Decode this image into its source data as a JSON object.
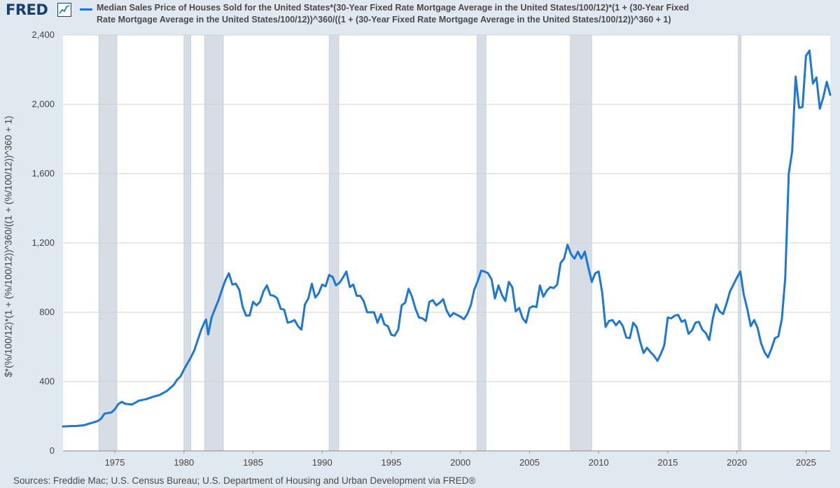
{
  "app": {
    "logo_text": "FRED"
  },
  "chart_data": {
    "type": "line",
    "title": "Median Sales Price of Houses Sold for the United States*(30-Year Fixed Rate Mortgage Average in the United States/100/12)*(1 + (30-Year Fixed Rate Mortgage Average in the United States/100/12))^360/((1 + (30-Year Fixed Rate Mortgage Average in the United States/100/12))^360 + 1)",
    "ylabel": "$*(%/100/12)*(1 + (%/100/12))^360/((1 + (%/100/12))^360 + 1)",
    "xlabel": "",
    "xlim": [
      1971.25,
      2025.0
    ],
    "ylim": [
      0,
      2400
    ],
    "x_ticks": [
      "1975",
      "1980",
      "1985",
      "1990",
      "1995",
      "2000",
      "2005",
      "2010",
      "2015",
      "2020",
      "2025"
    ],
    "y_ticks": [
      "0",
      "400",
      "800",
      "1,200",
      "1,600",
      "2,000",
      "2,400"
    ],
    "grid": "horizontal",
    "line_color": "#1f77d4",
    "recession_color": "#d6dde4",
    "recessions": [
      [
        1973.85,
        1975.15
      ],
      [
        1980.0,
        1980.5
      ],
      [
        1981.5,
        1982.85
      ],
      [
        1990.5,
        1991.2
      ],
      [
        2001.2,
        2001.85
      ],
      [
        2007.95,
        2009.5
      ],
      [
        2020.1,
        2020.3
      ]
    ],
    "series": [
      {
        "values": [
          [
            1971.25,
            141
          ],
          [
            1971.75,
            143
          ],
          [
            1972.25,
            144
          ],
          [
            1972.75,
            148
          ],
          [
            1973.25,
            160
          ],
          [
            1973.75,
            172
          ],
          [
            1974.0,
            185
          ],
          [
            1974.25,
            215
          ],
          [
            1974.75,
            222
          ],
          [
            1975.0,
            240
          ],
          [
            1975.25,
            270
          ],
          [
            1975.5,
            283
          ],
          [
            1975.75,
            272
          ],
          [
            1976.25,
            268
          ],
          [
            1976.75,
            290
          ],
          [
            1977.25,
            298
          ],
          [
            1977.75,
            312
          ],
          [
            1978.25,
            323
          ],
          [
            1978.75,
            345
          ],
          [
            1979.25,
            380
          ],
          [
            1979.5,
            410
          ],
          [
            1979.75,
            430
          ],
          [
            1980.0,
            470
          ],
          [
            1980.25,
            505
          ],
          [
            1980.5,
            540
          ],
          [
            1980.75,
            580
          ],
          [
            1981.0,
            640
          ],
          [
            1981.25,
            700
          ],
          [
            1981.5,
            745
          ],
          [
            1981.6,
            758
          ],
          [
            1981.75,
            672
          ],
          [
            1982.0,
            770
          ],
          [
            1982.25,
            820
          ],
          [
            1982.5,
            870
          ],
          [
            1982.75,
            930
          ],
          [
            1983.0,
            985
          ],
          [
            1983.25,
            1025
          ],
          [
            1983.5,
            960
          ],
          [
            1983.75,
            965
          ],
          [
            1984.0,
            930
          ],
          [
            1984.25,
            830
          ],
          [
            1984.5,
            780
          ],
          [
            1984.75,
            782
          ],
          [
            1985.0,
            860
          ],
          [
            1985.25,
            840
          ],
          [
            1985.5,
            860
          ],
          [
            1985.75,
            920
          ],
          [
            1986.0,
            955
          ],
          [
            1986.25,
            900
          ],
          [
            1986.5,
            895
          ],
          [
            1986.75,
            880
          ],
          [
            1987.0,
            820
          ],
          [
            1987.25,
            815
          ],
          [
            1987.5,
            740
          ],
          [
            1987.75,
            745
          ],
          [
            1988.0,
            755
          ],
          [
            1988.25,
            720
          ],
          [
            1988.5,
            700
          ],
          [
            1988.75,
            845
          ],
          [
            1989.0,
            880
          ],
          [
            1989.25,
            965
          ],
          [
            1989.5,
            885
          ],
          [
            1989.75,
            910
          ],
          [
            1990.0,
            960
          ],
          [
            1990.25,
            950
          ],
          [
            1990.5,
            1015
          ],
          [
            1990.75,
            1005
          ],
          [
            1991.0,
            955
          ],
          [
            1991.25,
            970
          ],
          [
            1991.5,
            1000
          ],
          [
            1991.75,
            1035
          ],
          [
            1992.0,
            945
          ],
          [
            1992.25,
            960
          ],
          [
            1992.5,
            895
          ],
          [
            1992.75,
            895
          ],
          [
            1993.0,
            865
          ],
          [
            1993.25,
            800
          ],
          [
            1993.5,
            800
          ],
          [
            1993.75,
            800
          ],
          [
            1994.0,
            740
          ],
          [
            1994.25,
            790
          ],
          [
            1994.5,
            730
          ],
          [
            1994.75,
            720
          ],
          [
            1995.0,
            670
          ],
          [
            1995.25,
            665
          ],
          [
            1995.5,
            700
          ],
          [
            1995.75,
            840
          ],
          [
            1996.0,
            855
          ],
          [
            1996.25,
            935
          ],
          [
            1996.5,
            890
          ],
          [
            1996.75,
            820
          ],
          [
            1997.0,
            770
          ],
          [
            1997.25,
            765
          ],
          [
            1997.5,
            750
          ],
          [
            1997.75,
            860
          ],
          [
            1998.0,
            870
          ],
          [
            1998.25,
            840
          ],
          [
            1998.5,
            855
          ],
          [
            1998.75,
            875
          ],
          [
            1999.0,
            810
          ],
          [
            1999.25,
            775
          ],
          [
            1999.5,
            795
          ],
          [
            1999.75,
            785
          ],
          [
            2000.0,
            775
          ],
          [
            2000.25,
            760
          ],
          [
            2000.5,
            790
          ],
          [
            2000.75,
            840
          ],
          [
            2001.0,
            930
          ],
          [
            2001.25,
            980
          ],
          [
            2001.5,
            1040
          ],
          [
            2001.75,
            1035
          ],
          [
            2002.0,
            1025
          ],
          [
            2002.25,
            990
          ],
          [
            2002.5,
            880
          ],
          [
            2002.75,
            955
          ],
          [
            2003.0,
            900
          ],
          [
            2003.25,
            865
          ],
          [
            2003.5,
            975
          ],
          [
            2003.75,
            945
          ],
          [
            2004.0,
            805
          ],
          [
            2004.25,
            825
          ],
          [
            2004.5,
            765
          ],
          [
            2004.75,
            740
          ],
          [
            2005.0,
            825
          ],
          [
            2005.25,
            835
          ],
          [
            2005.5,
            830
          ],
          [
            2005.75,
            955
          ],
          [
            2006.0,
            890
          ],
          [
            2006.25,
            925
          ],
          [
            2006.5,
            945
          ],
          [
            2006.75,
            940
          ],
          [
            2007.0,
            960
          ],
          [
            2007.25,
            1085
          ],
          [
            2007.5,
            1110
          ],
          [
            2007.75,
            1190
          ],
          [
            2008.0,
            1135
          ],
          [
            2008.25,
            1110
          ],
          [
            2008.5,
            1150
          ],
          [
            2008.75,
            1110
          ],
          [
            2009.0,
            1150
          ],
          [
            2009.25,
            1060
          ],
          [
            2009.5,
            975
          ],
          [
            2009.75,
            1025
          ],
          [
            2010.0,
            1035
          ],
          [
            2010.25,
            915
          ],
          [
            2010.5,
            715
          ],
          [
            2010.75,
            750
          ],
          [
            2011.0,
            755
          ],
          [
            2011.25,
            725
          ],
          [
            2011.5,
            750
          ],
          [
            2011.75,
            720
          ],
          [
            2012.0,
            655
          ],
          [
            2012.25,
            650
          ],
          [
            2012.5,
            740
          ],
          [
            2012.75,
            715
          ],
          [
            2013.0,
            630
          ],
          [
            2013.25,
            565
          ],
          [
            2013.5,
            595
          ],
          [
            2013.75,
            570
          ],
          [
            2014.0,
            550
          ],
          [
            2014.25,
            520
          ],
          [
            2014.5,
            560
          ],
          [
            2014.75,
            610
          ],
          [
            2015.0,
            770
          ],
          [
            2015.25,
            765
          ],
          [
            2015.5,
            780
          ],
          [
            2015.75,
            785
          ],
          [
            2016.0,
            745
          ],
          [
            2016.25,
            755
          ],
          [
            2016.5,
            675
          ],
          [
            2016.75,
            695
          ],
          [
            2017.0,
            740
          ],
          [
            2017.25,
            745
          ],
          [
            2017.5,
            700
          ],
          [
            2017.75,
            680
          ],
          [
            2018.0,
            640
          ],
          [
            2018.25,
            760
          ],
          [
            2018.5,
            845
          ],
          [
            2018.75,
            805
          ],
          [
            2019.0,
            790
          ],
          [
            2019.25,
            850
          ],
          [
            2019.5,
            920
          ],
          [
            2019.75,
            960
          ],
          [
            2020.0,
            1000
          ],
          [
            2020.25,
            1035
          ],
          [
            2020.5,
            900
          ],
          [
            2020.75,
            820
          ],
          [
            2021.0,
            720
          ],
          [
            2021.25,
            755
          ],
          [
            2021.5,
            710
          ],
          [
            2021.75,
            620
          ],
          [
            2022.0,
            570
          ],
          [
            2022.25,
            540
          ],
          [
            2022.5,
            590
          ],
          [
            2022.75,
            650
          ],
          [
            2023.0,
            660
          ],
          [
            2023.25,
            760
          ],
          [
            2023.5,
            1000
          ],
          [
            2023.75,
            1600
          ],
          [
            2024.0,
            1730
          ],
          [
            2024.25,
            2160
          ],
          [
            2024.5,
            1980
          ],
          [
            2024.75,
            1985
          ],
          [
            2025.0,
            2280
          ],
          [
            2025.25,
            2310
          ],
          [
            2025.5,
            2120
          ],
          [
            2025.75,
            2155
          ],
          [
            2026.0,
            1975
          ],
          [
            2026.25,
            2040
          ],
          [
            2026.5,
            2130
          ],
          [
            2026.75,
            2055
          ]
        ]
      }
    ],
    "source": "Sources: Freddie Mac; U.S. Census Bureau; U.S. Department of Housing and Urban Development via FRED®"
  }
}
